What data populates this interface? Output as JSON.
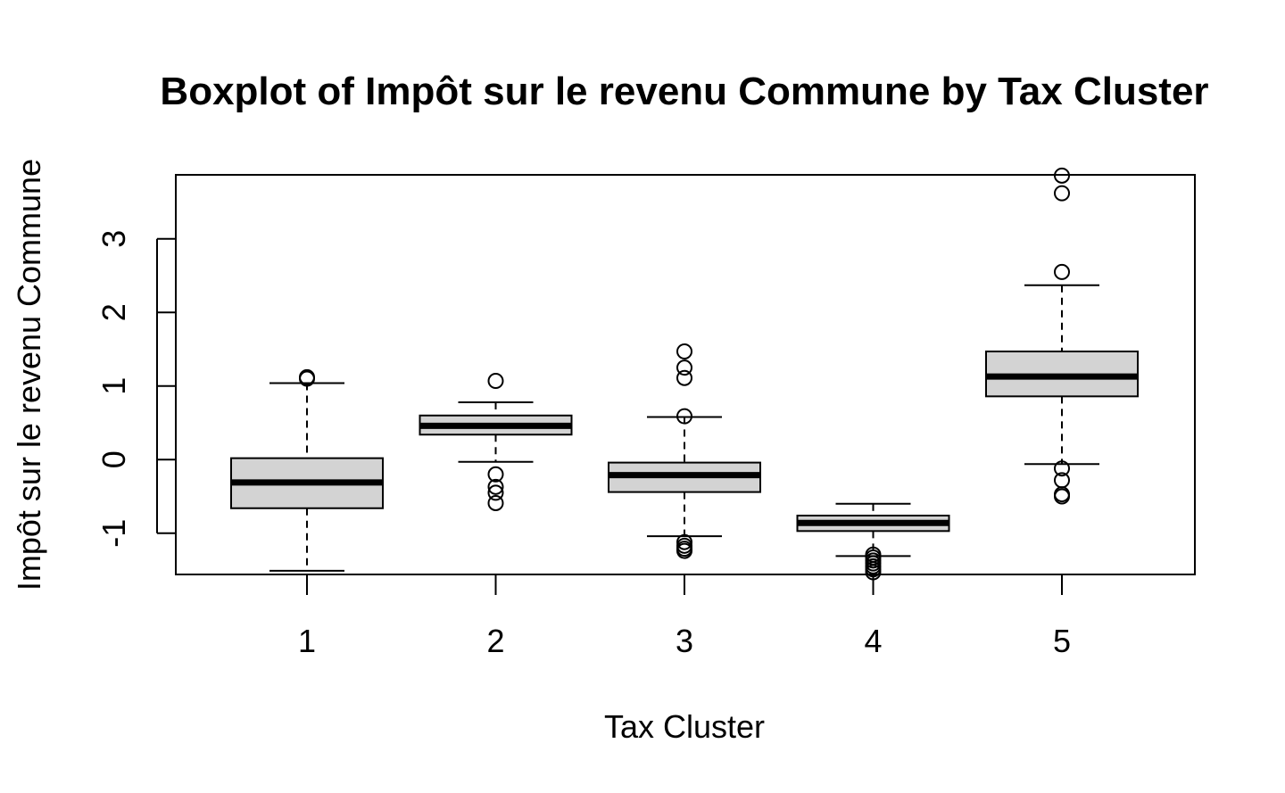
{
  "chart_data": {
    "type": "boxplot",
    "title": "Boxplot of Impôt sur le revenu Commune by Tax Cluster",
    "xlabel": "Tax Cluster",
    "ylabel": "Impôt sur le revenu Commune",
    "categories": [
      "1",
      "2",
      "3",
      "4",
      "5"
    ],
    "yticks": [
      -1,
      0,
      1,
      2,
      3
    ],
    "ylim": [
      -1.56,
      3.87
    ],
    "grid": false,
    "box_fill": "#d3d3d3",
    "boxes": [
      {
        "category": "1",
        "whisker_low": -1.51,
        "q1": -0.66,
        "median": -0.31,
        "q3": 0.02,
        "whisker_high": 1.04,
        "outliers": [
          1.1,
          1.12
        ]
      },
      {
        "category": "2",
        "whisker_low": -0.03,
        "q1": 0.34,
        "median": 0.46,
        "q3": 0.6,
        "whisker_high": 0.78,
        "outliers": [
          1.07,
          -0.2,
          -0.37,
          -0.45,
          -0.59
        ]
      },
      {
        "category": "3",
        "whisker_low": -1.04,
        "q1": -0.44,
        "median": -0.21,
        "q3": -0.04,
        "whisker_high": 0.58,
        "outliers": [
          0.59,
          1.11,
          1.25,
          1.47,
          -1.12,
          -1.17,
          -1.21,
          -1.24
        ]
      },
      {
        "category": "4",
        "whisker_low": -1.31,
        "q1": -0.97,
        "median": -0.86,
        "q3": -0.76,
        "whisker_high": -0.6,
        "outliers": [
          -1.29,
          -1.33,
          -1.37,
          -1.41,
          -1.45,
          -1.49,
          -1.53
        ]
      },
      {
        "category": "5",
        "whisker_low": -0.06,
        "q1": 0.86,
        "median": 1.13,
        "q3": 1.47,
        "whisker_high": 2.37,
        "outliers": [
          2.55,
          3.62,
          3.86,
          -0.12,
          -0.28,
          -0.47,
          -0.5
        ]
      }
    ]
  }
}
